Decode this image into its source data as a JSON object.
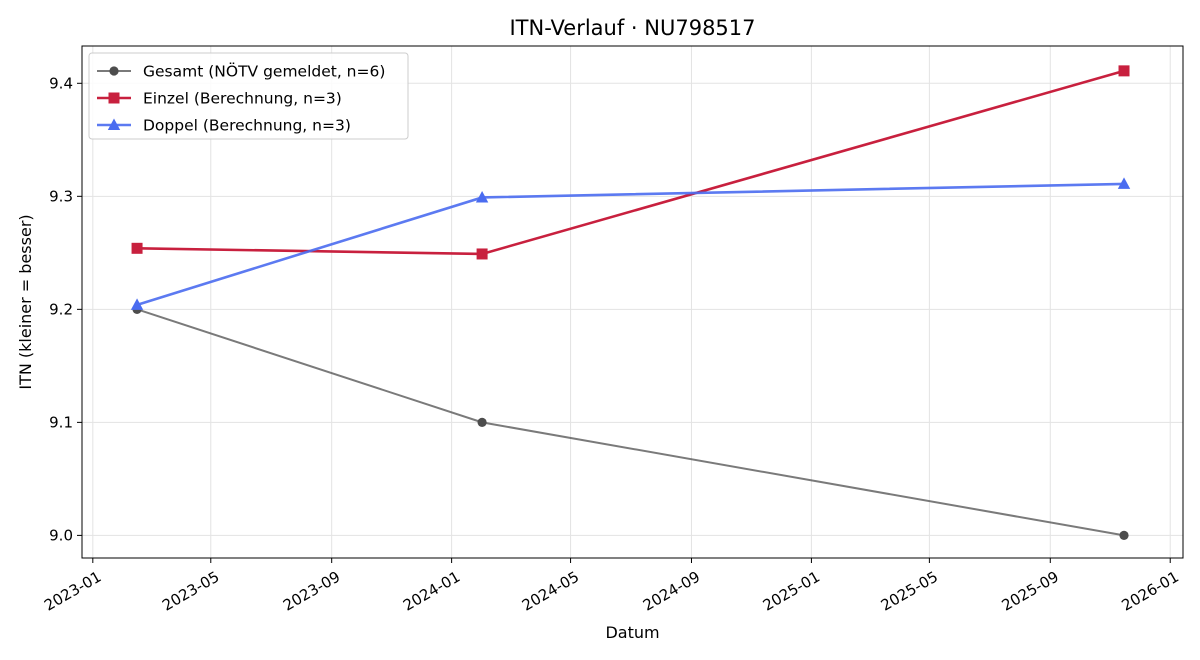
{
  "chart_data": {
    "type": "line",
    "title": "ITN-Verlauf · NU798517",
    "xlabel": "Datum",
    "ylabel": "ITN  (kleiner = besser)",
    "x_axis_type": "date",
    "xlim": [
      "2022-12-21",
      "2026-01-14"
    ],
    "ylim": [
      8.98,
      9.433
    ],
    "x_ticks": [
      "2023-01",
      "2023-05",
      "2023-09",
      "2024-01",
      "2024-05",
      "2024-09",
      "2025-01",
      "2025-05",
      "2025-09",
      "2026-01"
    ],
    "y_ticks": [
      "9.0",
      "9.1",
      "9.2",
      "9.3",
      "9.4"
    ],
    "grid": true,
    "legend_position": "top-left",
    "series": [
      {
        "name": "Gesamt (NÖTV gemeldet, n=6)",
        "color": "#4d4d4d",
        "marker": "circle",
        "x": [
          "2023-02-15",
          "2024-02-01",
          "2025-11-15"
        ],
        "values": [
          9.2,
          9.1,
          9.0
        ]
      },
      {
        "name": "Einzel (Berechnung, n=3)",
        "color": "#c8203e",
        "marker": "square",
        "x": [
          "2023-02-15",
          "2024-02-01",
          "2025-11-15"
        ],
        "values": [
          9.254,
          9.249,
          9.411
        ]
      },
      {
        "name": "Doppel (Berechnung, n=3)",
        "color": "#4a6cf0",
        "marker": "triangle",
        "x": [
          "2023-02-15",
          "2024-02-01",
          "2025-11-15"
        ],
        "values": [
          9.204,
          9.299,
          9.311
        ]
      }
    ]
  }
}
